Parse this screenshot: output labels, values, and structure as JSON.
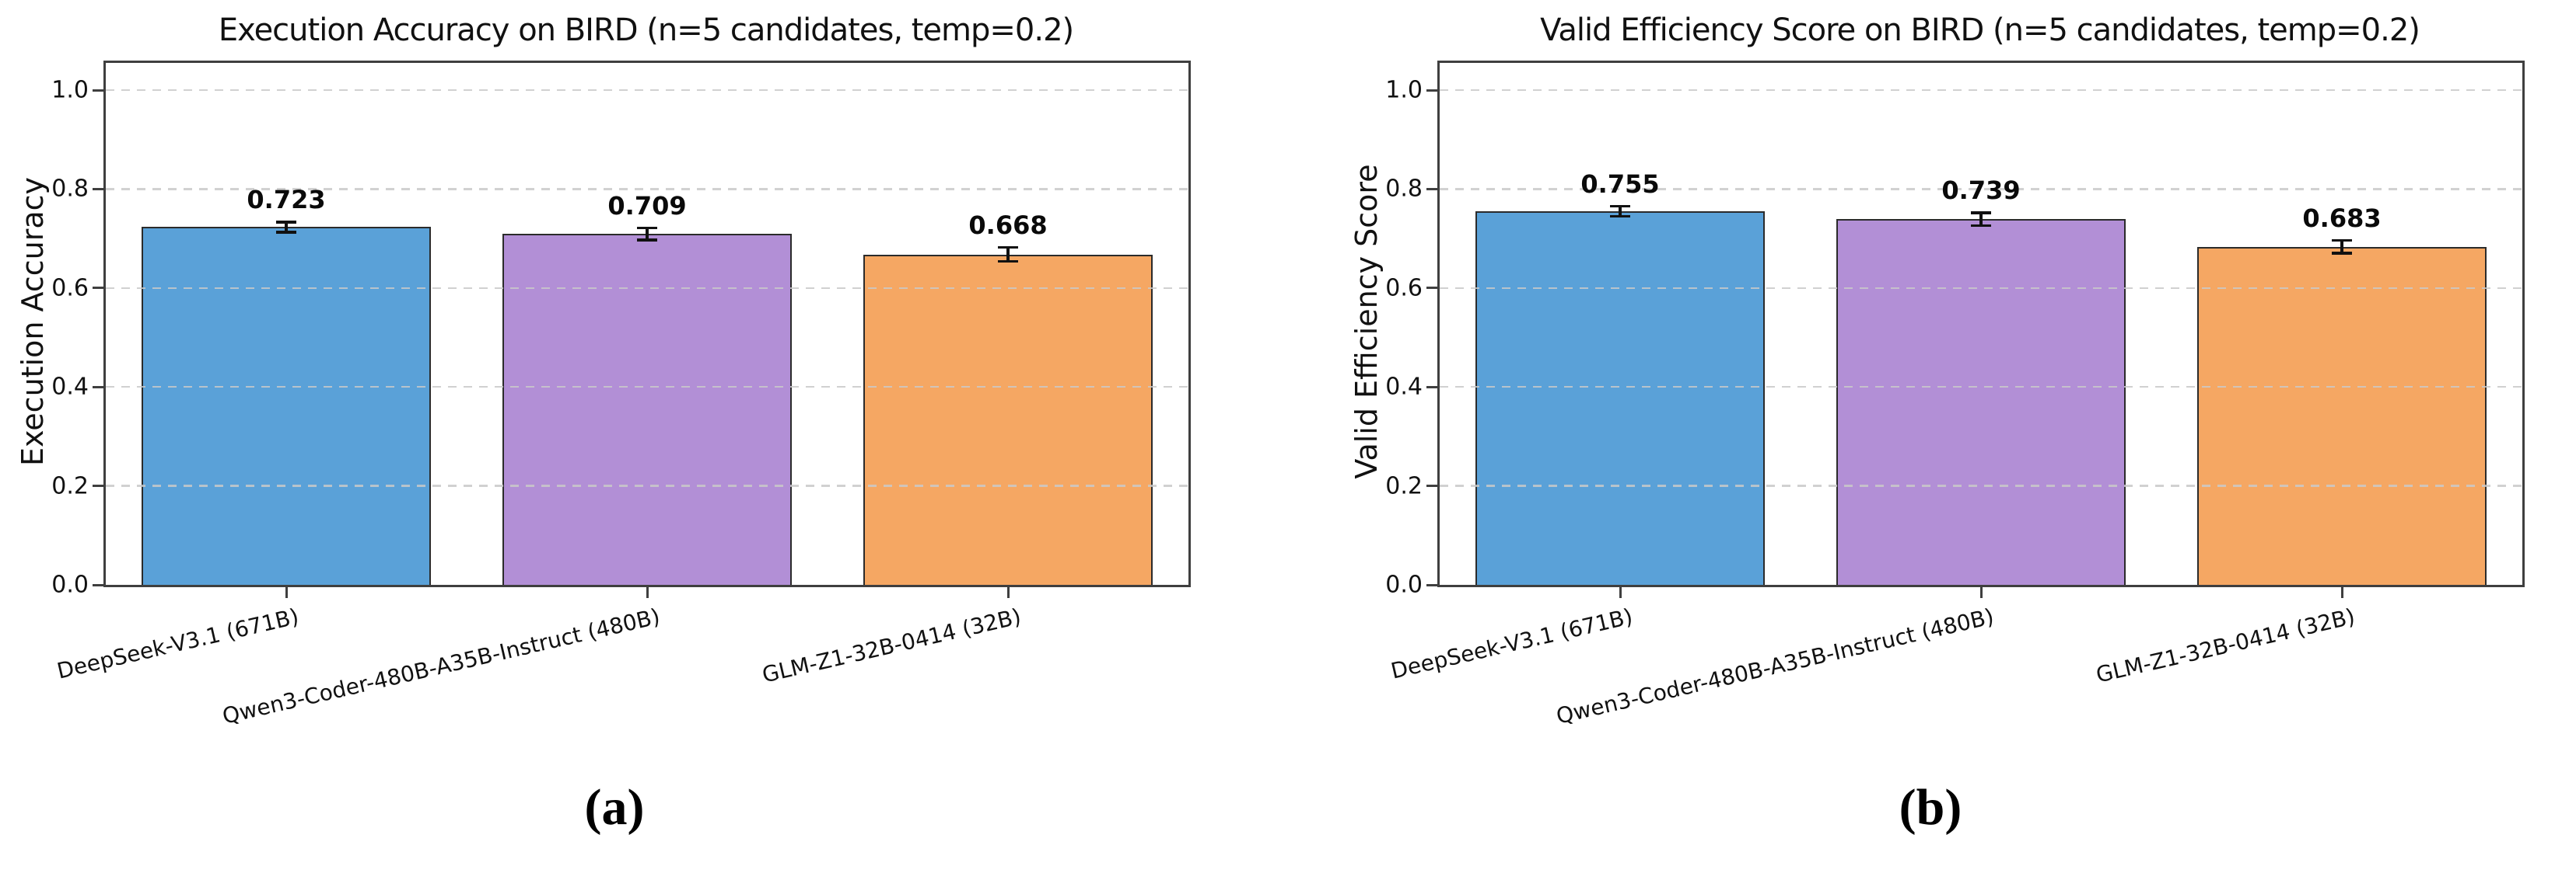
{
  "figure": {
    "background": "#ffffff",
    "captions": {
      "a": "(a)",
      "b": "(b)"
    }
  },
  "style": {
    "bar_colors": [
      "#5AA1D8",
      "#B28FD6",
      "#F5A763"
    ],
    "bar_edge_color": "#2b2b2b",
    "gridline_color": "#c9c9c9",
    "spine_color": "#3f3f3f",
    "error_bar_color": "#111111"
  },
  "chart_data": [
    {
      "id": "a",
      "type": "bar",
      "title": "Execution Accuracy on BIRD (n=5 candidates, temp=0.2)",
      "ylabel": "Execution Accuracy",
      "xlabel": "",
      "caption": "(a)",
      "categories": [
        "DeepSeek-V3.1 (671B)",
        "Qwen3-Coder-480B-A35B-Instruct (480B)",
        "GLM-Z1-32B-0414 (32B)"
      ],
      "values": [
        0.723,
        0.709,
        0.668
      ],
      "value_labels": [
        "0.723",
        "0.709",
        "0.668"
      ],
      "errors": [
        0.01,
        0.012,
        0.014
      ],
      "bar_colors": [
        "#5AA1D8",
        "#B28FD6",
        "#F5A763"
      ],
      "ylim": [
        0,
        1.055
      ],
      "yticks": [
        0.0,
        0.2,
        0.4,
        0.6,
        0.8,
        1.0
      ],
      "ytick_labels": [
        "0.0",
        "0.2",
        "0.4",
        "0.6",
        "0.8",
        "1.0"
      ],
      "grid": "horizontal dashed, drawn over bars",
      "legend": "none",
      "x_tick_rotation_deg": 13
    },
    {
      "id": "b",
      "type": "bar",
      "title": "Valid Efficiency Score on BIRD (n=5 candidates, temp=0.2)",
      "ylabel": "Valid Efficiency Score",
      "xlabel": "",
      "caption": "(b)",
      "categories": [
        "DeepSeek-V3.1 (671B)",
        "Qwen3-Coder-480B-A35B-Instruct (480B)",
        "GLM-Z1-32B-0414 (32B)"
      ],
      "values": [
        0.755,
        0.739,
        0.683
      ],
      "value_labels": [
        "0.755",
        "0.739",
        "0.683"
      ],
      "errors": [
        0.01,
        0.013,
        0.013
      ],
      "bar_colors": [
        "#5AA1D8",
        "#B28FD6",
        "#F5A763"
      ],
      "ylim": [
        0,
        1.055
      ],
      "yticks": [
        0.0,
        0.2,
        0.4,
        0.6,
        0.8,
        1.0
      ],
      "ytick_labels": [
        "0.0",
        "0.2",
        "0.4",
        "0.6",
        "0.8",
        "1.0"
      ],
      "grid": "horizontal dashed, drawn over bars",
      "legend": "none",
      "x_tick_rotation_deg": 13
    }
  ]
}
